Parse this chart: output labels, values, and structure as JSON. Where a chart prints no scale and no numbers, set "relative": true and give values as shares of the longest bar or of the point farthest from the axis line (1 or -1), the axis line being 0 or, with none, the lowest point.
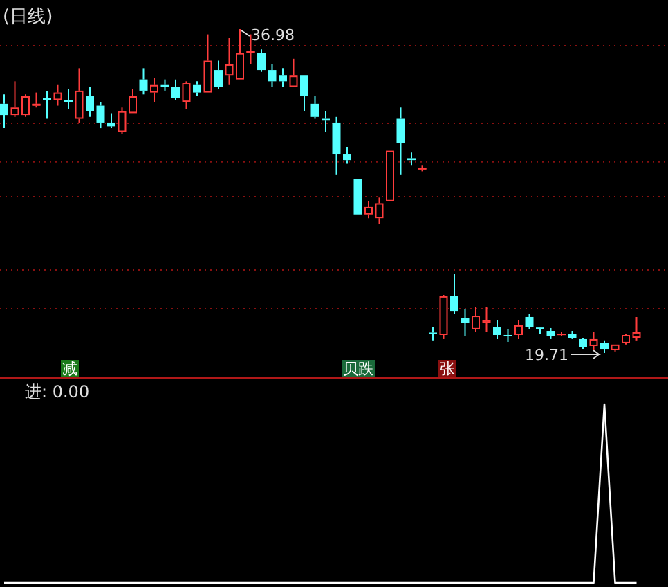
{
  "chart_data": [
    {
      "type": "candlestick",
      "title": "(日线)",
      "grid": "y",
      "categories": [
        null,
        null,
        null,
        null,
        null,
        null,
        null,
        null,
        null,
        null,
        null,
        null,
        null,
        null,
        null,
        null,
        null,
        null,
        null,
        null,
        null,
        null,
        null,
        null,
        null,
        null,
        null,
        null,
        null,
        null,
        null,
        null,
        null,
        null,
        null,
        null,
        null,
        null,
        null,
        null,
        null,
        null,
        null,
        null,
        null,
        null,
        null,
        null,
        null,
        null,
        null,
        null,
        null,
        null,
        null,
        null,
        null,
        null,
        null,
        null
      ],
      "yticks": [
        {
          "value": 36.09,
          "label": null
        },
        {
          "value": 31.96,
          "label": null
        },
        {
          "value": 29.9,
          "label": null
        },
        {
          "value": 28.05,
          "label": null
        },
        {
          "value": 24.14,
          "label": null
        },
        {
          "value": 22.07,
          "label": null
        }
      ],
      "ohlc": [
        [
          33.0,
          33.5,
          31.7,
          32.4
        ],
        [
          32.4,
          34.2,
          32.3,
          32.8
        ],
        [
          32.4,
          33.5,
          32.3,
          33.4
        ],
        [
          32.9,
          33.6,
          32.8,
          33.0
        ],
        [
          33.3,
          33.7,
          32.2,
          33.2
        ],
        [
          33.2,
          34.0,
          32.9,
          33.6
        ],
        [
          33.2,
          33.8,
          32.7,
          33.1
        ],
        [
          32.2,
          34.9,
          32.0,
          33.7
        ],
        [
          33.4,
          33.9,
          32.3,
          32.6
        ],
        [
          32.9,
          33.1,
          31.7,
          32.0
        ],
        [
          32.0,
          32.5,
          31.7,
          31.8
        ],
        [
          31.5,
          32.8,
          31.4,
          32.6
        ],
        [
          32.5,
          33.8,
          32.5,
          33.4
        ],
        [
          34.3,
          34.9,
          33.5,
          33.7
        ],
        [
          33.6,
          34.4,
          33.1,
          34.0
        ],
        [
          34.0,
          34.3,
          33.7,
          33.9
        ],
        [
          33.9,
          34.3,
          33.2,
          33.3
        ],
        [
          33.1,
          34.2,
          32.7,
          34.1
        ],
        [
          34.0,
          34.2,
          33.4,
          33.6
        ],
        [
          33.6,
          36.7,
          33.6,
          35.3
        ],
        [
          34.8,
          35.3,
          33.8,
          33.9
        ],
        [
          34.5,
          36.5,
          34.0,
          35.1
        ],
        [
          34.3,
          36.98,
          34.3,
          35.7
        ],
        [
          35.7,
          36.7,
          35.1,
          35.8
        ],
        [
          35.7,
          35.9,
          34.7,
          34.8
        ],
        [
          34.8,
          35.1,
          33.9,
          34.2
        ],
        [
          34.5,
          34.9,
          33.9,
          34.2
        ],
        [
          33.9,
          35.4,
          33.9,
          34.5
        ],
        [
          34.5,
          34.5,
          32.6,
          33.4
        ],
        [
          33.0,
          33.4,
          32.2,
          32.3
        ],
        [
          32.2,
          32.6,
          31.5,
          32.1
        ],
        [
          32.0,
          32.3,
          29.2,
          30.3
        ],
        [
          30.3,
          30.7,
          29.8,
          30.0
        ],
        [
          29.0,
          29.0,
          27.1,
          27.1
        ],
        [
          27.1,
          27.8,
          26.9,
          27.5
        ],
        [
          26.9,
          28.0,
          26.6,
          27.7
        ],
        [
          27.8,
          30.5,
          27.8,
          30.5
        ],
        [
          32.2,
          32.8,
          29.2,
          30.9
        ],
        [
          30.1,
          30.4,
          29.7,
          30.0
        ],
        [
          29.5,
          29.7,
          29.4,
          29.6
        ],
        [
          20.8,
          21.11,
          20.38,
          20.74
        ],
        [
          20.67,
          22.81,
          20.45,
          22.74
        ],
        [
          22.74,
          23.92,
          21.78,
          21.92
        ],
        [
          21.56,
          22.07,
          20.6,
          21.33
        ],
        [
          20.97,
          22.15,
          20.82,
          21.7
        ],
        [
          21.33,
          22.15,
          20.82,
          21.48
        ],
        [
          21.11,
          21.48,
          20.45,
          20.67
        ],
        [
          20.67,
          20.97,
          20.3,
          20.6
        ],
        [
          20.67,
          21.48,
          20.45,
          21.19
        ],
        [
          21.63,
          21.78,
          20.97,
          21.11
        ],
        [
          21.07,
          21.11,
          20.74,
          21.04
        ],
        [
          20.89,
          21.04,
          20.45,
          20.6
        ],
        [
          20.67,
          20.82,
          20.6,
          20.74
        ],
        [
          20.74,
          20.89,
          20.45,
          20.52
        ],
        [
          20.45,
          20.52,
          19.93,
          20.01
        ],
        [
          20.08,
          20.82,
          19.86,
          20.45
        ],
        [
          20.23,
          20.38,
          19.71,
          19.93
        ],
        [
          19.86,
          20.16,
          19.79,
          20.16
        ],
        [
          20.23,
          20.74,
          20.16,
          20.67
        ],
        [
          20.52,
          21.63,
          20.38,
          20.82
        ]
      ],
      "annotations": [
        "减",
        "贝跌",
        "张",
        "36.98",
        "19.71"
      ]
    },
    {
      "type": "line",
      "title": "进: 0.00",
      "relative": true,
      "color": "#ffffff",
      "categories": [
        null,
        null,
        null,
        null,
        null,
        null,
        null,
        null,
        null,
        null,
        null,
        null,
        null,
        null,
        null,
        null,
        null,
        null,
        null,
        null,
        null,
        null,
        null,
        null,
        null,
        null,
        null,
        null,
        null,
        null,
        null,
        null,
        null,
        null,
        null,
        null,
        null,
        null,
        null,
        null,
        null,
        null,
        null,
        null,
        null,
        null,
        null,
        null,
        null,
        null,
        null,
        null,
        null,
        null,
        null,
        null,
        null,
        null,
        null,
        null
      ],
      "values": [
        0,
        0,
        0,
        0,
        0,
        0,
        0,
        0,
        0,
        0,
        0,
        0,
        0,
        0,
        0,
        0,
        0,
        0,
        0,
        0,
        0,
        0,
        0,
        0,
        0,
        0,
        0,
        0,
        0,
        0,
        0,
        0,
        0,
        0,
        0,
        0,
        0,
        0,
        0,
        0,
        0,
        0,
        0,
        0,
        0,
        0,
        0,
        0,
        0,
        0,
        0,
        0,
        0,
        0,
        0,
        0,
        1,
        0,
        0,
        0
      ]
    }
  ]
}
